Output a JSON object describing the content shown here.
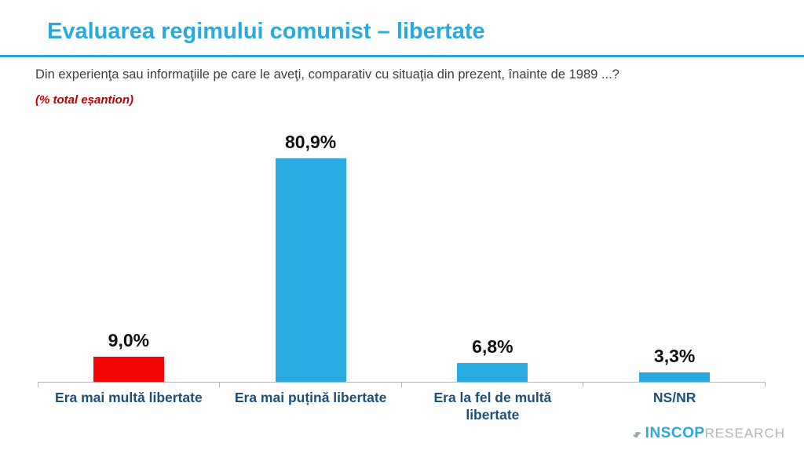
{
  "slide": {
    "title": "Evaluarea regimului comunist – libertate",
    "question": "Din experienţa sau informaţiile pe care le aveţi, comparativ cu situaţia din prezent, înainte de 1989 ...?",
    "sample_note": "(% total eșantion)"
  },
  "chart_data": {
    "type": "bar",
    "categories": [
      "Era mai multă libertate",
      "Era mai puțină libertate",
      "Era la fel de multă libertate",
      "NS/NR"
    ],
    "values": [
      9.0,
      80.9,
      6.8,
      3.3
    ],
    "value_labels": [
      "9,0%",
      "80,9%",
      "6,8%",
      "3,3%"
    ],
    "bar_colors": [
      "#f40505",
      "#29abe2",
      "#29abe2",
      "#29abe2"
    ],
    "title": "Evaluarea regimului comunist – libertate",
    "xlabel": "",
    "ylabel": "% total eșantion",
    "ylim": [
      0,
      95
    ],
    "grid": false,
    "legend": "none",
    "value_label_position": "above-bar",
    "category_label_color": "#1f4e79",
    "axis_color": "#b7b7b7"
  },
  "logo": {
    "brand": "INSCOP",
    "suffix": "RESEARCH"
  },
  "colors": {
    "accent_blue": "#29a9dc",
    "bar_blue": "#29abe2",
    "bar_red": "#f40505",
    "note_red": "#c00000",
    "label_navy": "#1f4e79",
    "background": "#ffffff"
  }
}
